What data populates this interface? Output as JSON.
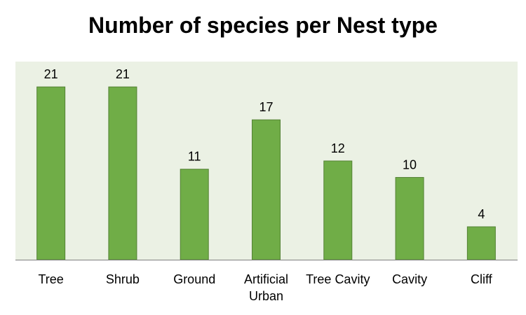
{
  "chart_data": {
    "type": "bar",
    "title": "Number of species per Nest type",
    "xlabel": "",
    "ylabel": "",
    "categories": [
      "Tree",
      "Shrub",
      "Ground",
      "Artificial Urban",
      "Tree Cavity",
      "Cavity",
      "Cliff"
    ],
    "category_lines": [
      [
        "Tree"
      ],
      [
        "Shrub"
      ],
      [
        "Ground"
      ],
      [
        "Artificial",
        "Urban"
      ],
      [
        "Tree Cavity"
      ],
      [
        "Cavity"
      ],
      [
        "Cliff"
      ]
    ],
    "values": [
      21,
      21,
      11,
      17,
      12,
      10,
      4
    ],
    "ylim": [
      0,
      24
    ],
    "grid": false,
    "legend": "none",
    "colors": {
      "bar_fill": "#70AD47",
      "bar_stroke": "#548235",
      "plot_background": "#EBF1E4",
      "axis": "#7f7f7f"
    }
  }
}
